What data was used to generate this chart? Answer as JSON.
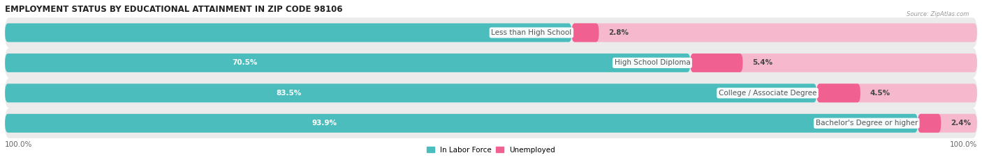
{
  "title": "EMPLOYMENT STATUS BY EDUCATIONAL ATTAINMENT IN ZIP CODE 98106",
  "source": "Source: ZipAtlas.com",
  "categories": [
    "Less than High School",
    "High School Diploma",
    "College / Associate Degree",
    "Bachelor's Degree or higher"
  ],
  "labor_force_pct": [
    58.3,
    70.5,
    83.5,
    93.9
  ],
  "unemployed_pct": [
    2.8,
    5.4,
    4.5,
    2.4
  ],
  "total_width": 100.0,
  "labor_force_color": "#4bbdbd",
  "unemployed_color_dark": "#f06090",
  "unemployed_color_light": "#f5b8cc",
  "row_bg_color": "#ebebeb",
  "label_inside_color": "#ffffff",
  "label_outside_color": "#444444",
  "category_label_color": "#555555",
  "axis_label_left": "100.0%",
  "axis_label_right": "100.0%",
  "bar_height": 0.62,
  "fig_width": 14.06,
  "fig_height": 2.33,
  "title_fontsize": 8.5,
  "bar_label_fontsize": 7.5,
  "cat_label_fontsize": 7.5,
  "legend_fontsize": 7.5,
  "axis_tick_fontsize": 7.5,
  "lf_threshold_inside": 65.0
}
